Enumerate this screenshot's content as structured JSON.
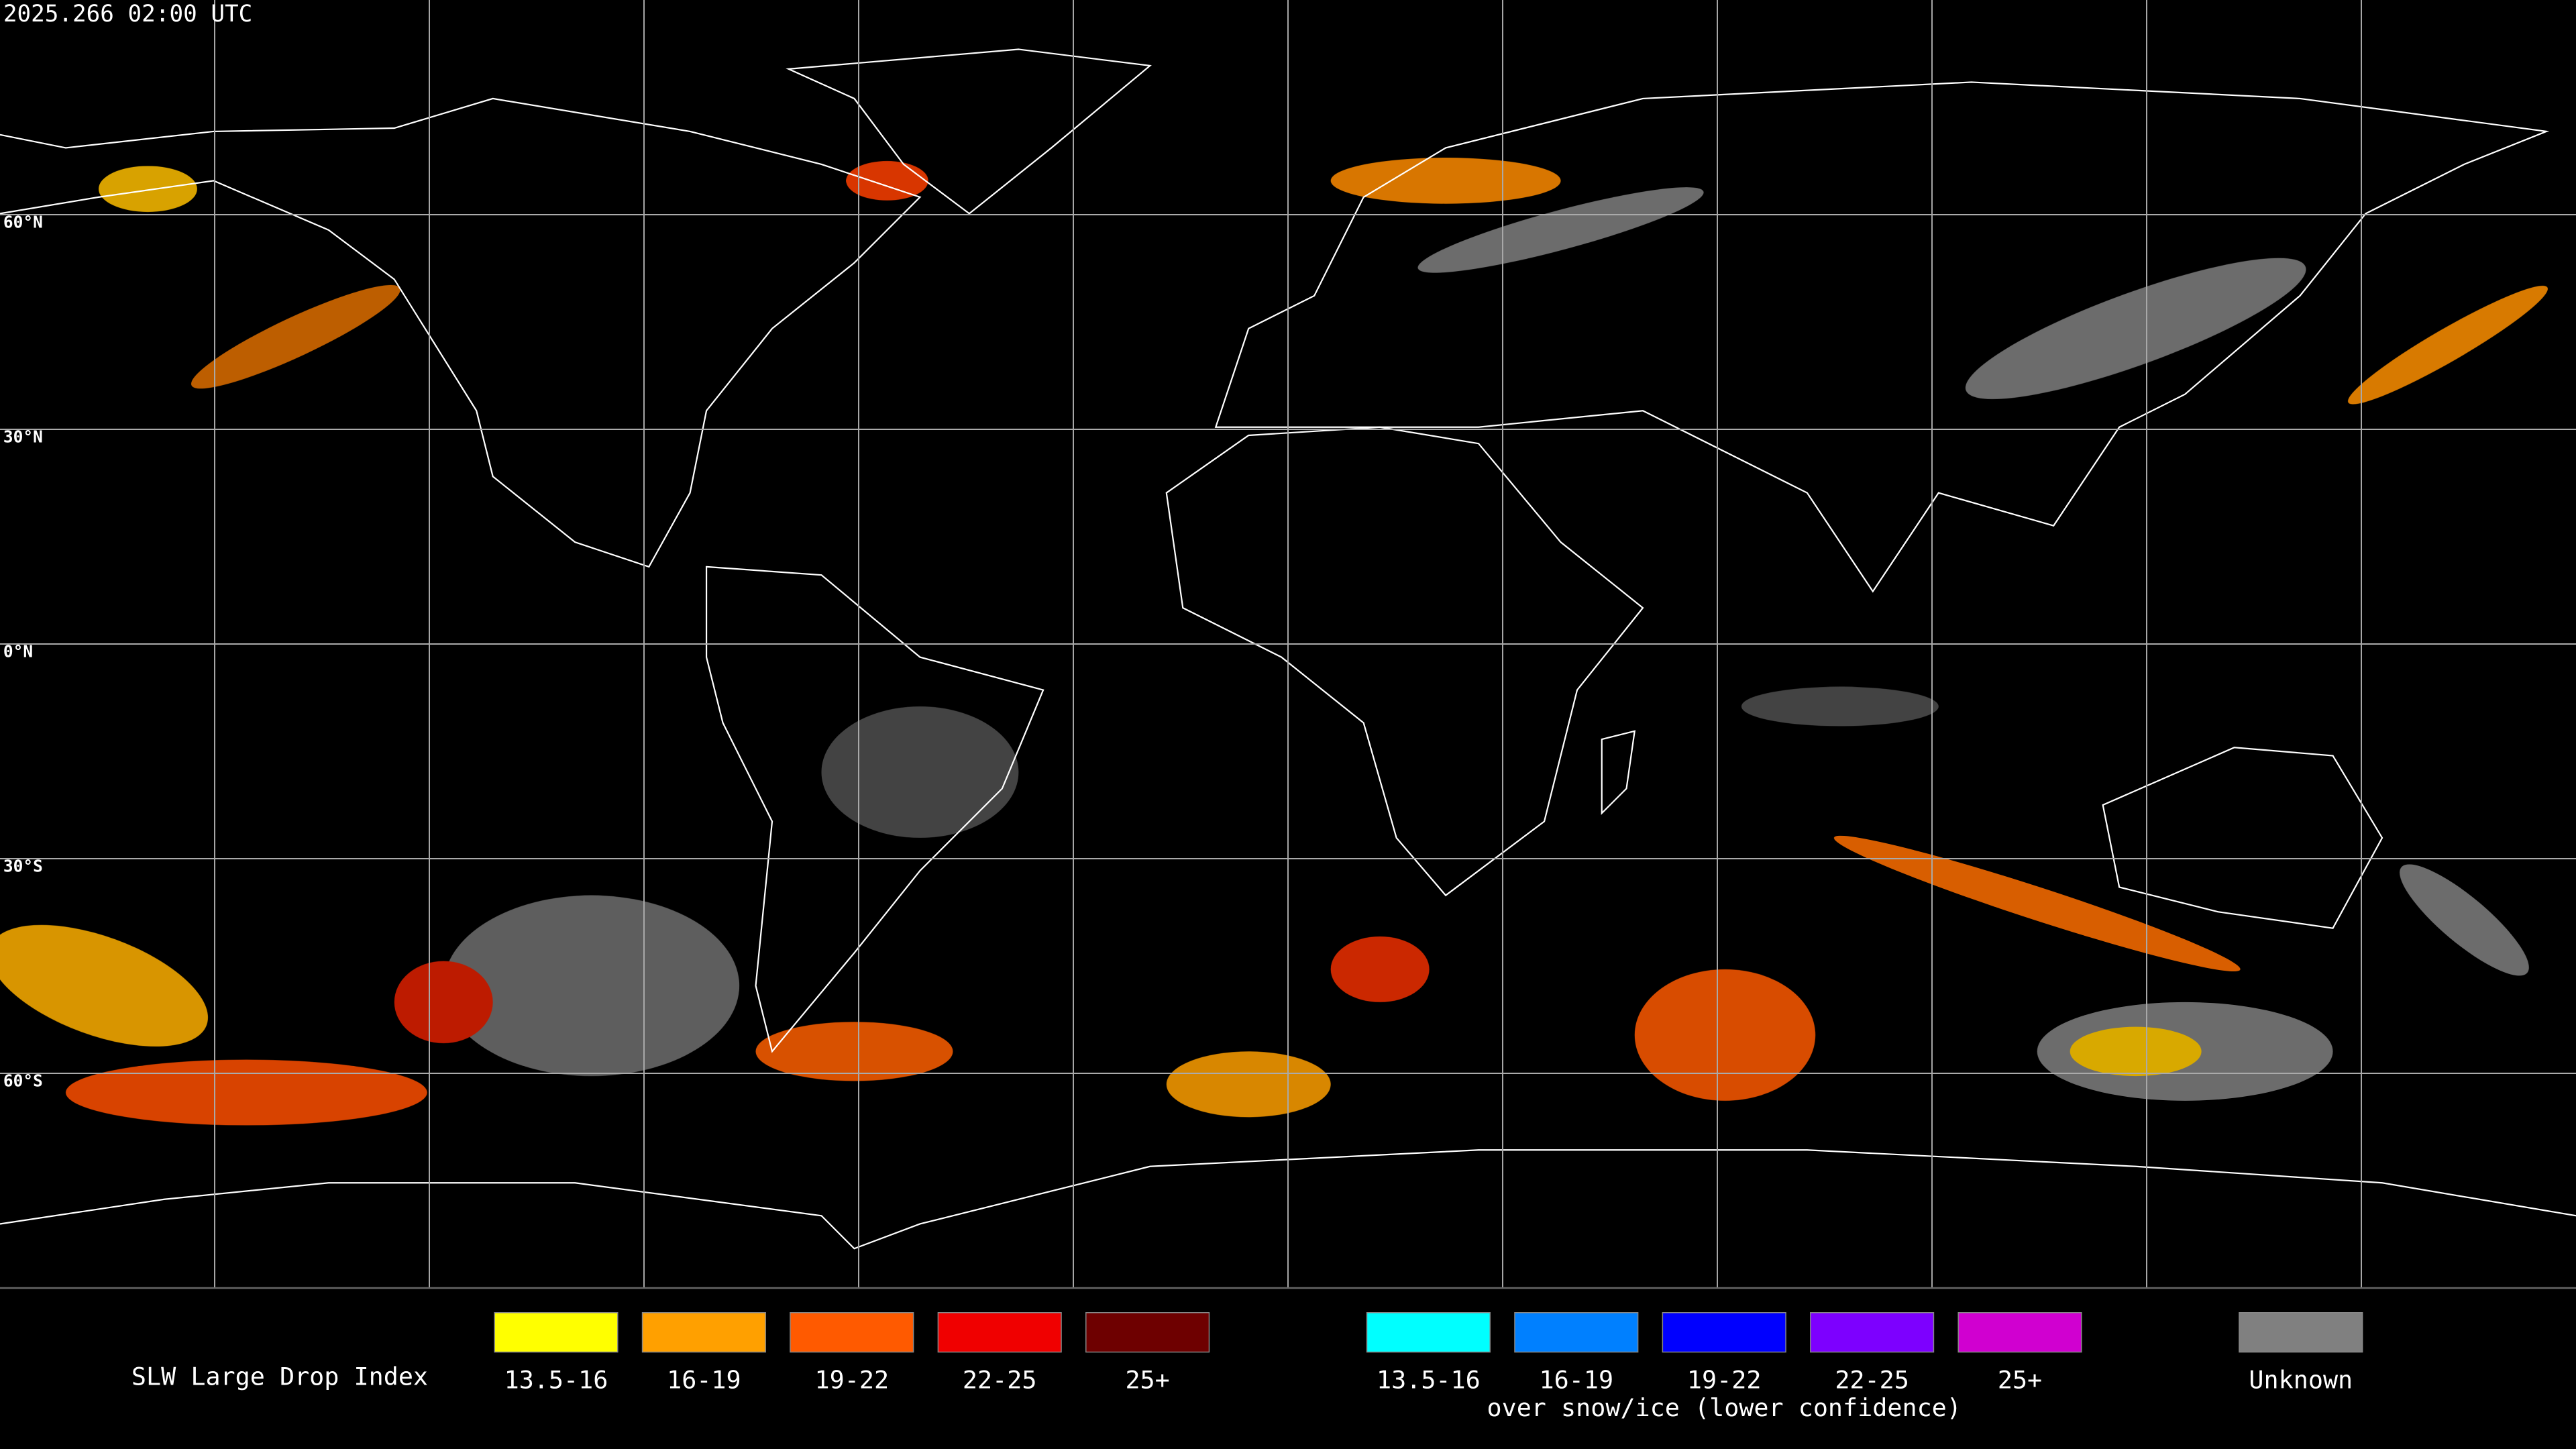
{
  "header": {
    "timestamp": "2025.266 02:00 UTC"
  },
  "latitude_labels": [
    "60°N",
    "30°N",
    "0°N",
    "30°S",
    "60°S"
  ],
  "legend": {
    "title": "SLW Large Drop Index",
    "groups": [
      {
        "items": [
          {
            "label": "13.5-16",
            "color": "#ffff00"
          },
          {
            "label": "16-19",
            "color": "#ffa000"
          },
          {
            "label": "19-22",
            "color": "#ff5a00"
          },
          {
            "label": "22-25",
            "color": "#f00000"
          },
          {
            "label": "25+",
            "color": "#6e0000"
          }
        ]
      },
      {
        "items": [
          {
            "label": "13.5-16",
            "color": "#00ffff"
          },
          {
            "label": "16-19",
            "color": "#0080ff"
          },
          {
            "label": "19-22",
            "color": "#0000ff"
          },
          {
            "label": "22-25",
            "color": "#7d00ff"
          },
          {
            "label": "25+",
            "color": "#d000d0"
          }
        ],
        "caption": "over snow/ice (lower confidence)"
      },
      {
        "items": [
          {
            "label": "Unknown",
            "color": "#808080"
          }
        ]
      }
    ]
  }
}
